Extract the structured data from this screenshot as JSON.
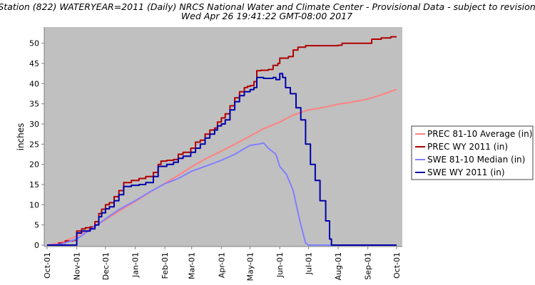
{
  "chart_data": {
    "type": "line",
    "title": "Station (822) WATERYEAR=2011 (Daily) NRCS National Water and Climate Center - Provisional Data - subject to revision",
    "subtitle": "Wed Apr 26 19:41:22 GMT-08:00 2017",
    "ylabel": "inches",
    "xlabel": "",
    "ylim": [
      0,
      54
    ],
    "yticks": [
      0,
      5,
      10,
      15,
      20,
      25,
      30,
      35,
      40,
      45,
      50
    ],
    "xlim": [
      "2010-10-01",
      "2011-10-04"
    ],
    "xticks": [
      {
        "label": "Oct-01",
        "date": "2010-10-01"
      },
      {
        "label": "Nov-01",
        "date": "2010-11-01"
      },
      {
        "label": "Dec-01",
        "date": "2010-12-01"
      },
      {
        "label": "Jan-01",
        "date": "2011-01-01"
      },
      {
        "label": "Feb-01",
        "date": "2011-02-01"
      },
      {
        "label": "Mar-01",
        "date": "2011-03-01"
      },
      {
        "label": "Apr-01",
        "date": "2011-04-01"
      },
      {
        "label": "May-01",
        "date": "2011-05-01"
      },
      {
        "label": "Jun-01",
        "date": "2011-06-01"
      },
      {
        "label": "Jul-01",
        "date": "2011-07-01"
      },
      {
        "label": "Aug-01",
        "date": "2011-08-01"
      },
      {
        "label": "Sep-01",
        "date": "2011-09-01"
      },
      {
        "label": "Oct-01",
        "date": "2011-10-01"
      }
    ],
    "grid": false,
    "plot_background": "#c0c0c0",
    "legend_position": "right",
    "series": [
      {
        "name": "PREC 81-10 Average (in)",
        "color": "#ff8080",
        "style": "smooth",
        "points": [
          [
            "2010-10-01",
            0.0
          ],
          [
            "2010-10-15",
            0.6
          ],
          [
            "2010-11-01",
            2.2
          ],
          [
            "2010-11-15",
            4.0
          ],
          [
            "2010-12-01",
            6.3
          ],
          [
            "2010-12-15",
            8.4
          ],
          [
            "2011-01-01",
            10.8
          ],
          [
            "2011-01-15",
            12.9
          ],
          [
            "2011-02-01",
            15.3
          ],
          [
            "2011-02-15",
            17.3
          ],
          [
            "2011-03-01",
            19.4
          ],
          [
            "2011-03-15",
            21.3
          ],
          [
            "2011-04-01",
            23.3
          ],
          [
            "2011-04-15",
            25.0
          ],
          [
            "2011-05-01",
            27.0
          ],
          [
            "2011-05-15",
            28.8
          ],
          [
            "2011-06-01",
            30.5
          ],
          [
            "2011-06-15",
            32.2
          ],
          [
            "2011-07-01",
            33.5
          ],
          [
            "2011-07-15",
            34.0
          ],
          [
            "2011-08-01",
            34.9
          ],
          [
            "2011-08-15",
            35.4
          ],
          [
            "2011-09-01",
            36.2
          ],
          [
            "2011-09-15",
            37.2
          ],
          [
            "2011-10-01",
            38.6
          ]
        ]
      },
      {
        "name": "PREC WY 2011  (in)",
        "color": "#b00000",
        "style": "step",
        "points": [
          [
            "2010-10-01",
            0.0
          ],
          [
            "2010-10-13",
            0.5
          ],
          [
            "2010-10-20",
            1.0
          ],
          [
            "2010-10-28",
            1.2
          ],
          [
            "2010-11-01",
            3.5
          ],
          [
            "2010-11-06",
            4.0
          ],
          [
            "2010-11-10",
            4.3
          ],
          [
            "2010-11-15",
            4.5
          ],
          [
            "2010-11-20",
            5.8
          ],
          [
            "2010-11-24",
            7.8
          ],
          [
            "2010-11-27",
            8.9
          ],
          [
            "2010-12-01",
            10.0
          ],
          [
            "2010-12-05",
            10.5
          ],
          [
            "2010-12-10",
            12.0
          ],
          [
            "2010-12-15",
            13.5
          ],
          [
            "2010-12-20",
            15.5
          ],
          [
            "2010-12-28",
            16.0
          ],
          [
            "2011-01-05",
            16.5
          ],
          [
            "2011-01-12",
            17.0
          ],
          [
            "2011-01-20",
            18.0
          ],
          [
            "2011-01-25",
            20.0
          ],
          [
            "2011-01-28",
            20.8
          ],
          [
            "2011-02-03",
            21.0
          ],
          [
            "2011-02-10",
            21.2
          ],
          [
            "2011-02-15",
            22.5
          ],
          [
            "2011-02-20",
            23.0
          ],
          [
            "2011-02-28",
            24.0
          ],
          [
            "2011-03-05",
            25.5
          ],
          [
            "2011-03-10",
            26.0
          ],
          [
            "2011-03-15",
            27.5
          ],
          [
            "2011-03-20",
            28.5
          ],
          [
            "2011-03-25",
            29.0
          ],
          [
            "2011-03-28",
            30.5
          ],
          [
            "2011-04-01",
            31.5
          ],
          [
            "2011-04-05",
            32.5
          ],
          [
            "2011-04-10",
            34.5
          ],
          [
            "2011-04-15",
            36.5
          ],
          [
            "2011-04-20",
            38.0
          ],
          [
            "2011-04-25",
            39.0
          ],
          [
            "2011-04-28",
            39.3
          ],
          [
            "2011-05-01",
            39.5
          ],
          [
            "2011-05-05",
            40.5
          ],
          [
            "2011-05-08",
            43.2
          ],
          [
            "2011-05-12",
            43.3
          ],
          [
            "2011-05-20",
            43.5
          ],
          [
            "2011-05-25",
            44.5
          ],
          [
            "2011-05-30",
            45.0
          ],
          [
            "2011-06-01",
            46.3
          ],
          [
            "2011-06-10",
            46.7
          ],
          [
            "2011-06-15",
            48.3
          ],
          [
            "2011-06-20",
            49.0
          ],
          [
            "2011-06-28",
            49.4
          ],
          [
            "2011-08-01",
            49.5
          ],
          [
            "2011-08-05",
            50.0
          ],
          [
            "2011-08-31",
            50.0
          ],
          [
            "2011-09-05",
            51.0
          ],
          [
            "2011-09-15",
            51.3
          ],
          [
            "2011-09-25",
            51.6
          ],
          [
            "2011-10-01",
            51.6
          ]
        ]
      },
      {
        "name": "SWE 81-10 Median (in)",
        "color": "#8080ff",
        "style": "smooth",
        "points": [
          [
            "2010-10-01",
            0.0
          ],
          [
            "2010-10-15",
            0.2
          ],
          [
            "2010-11-01",
            1.5
          ],
          [
            "2010-11-15",
            3.8
          ],
          [
            "2010-12-01",
            6.5
          ],
          [
            "2010-12-15",
            8.8
          ],
          [
            "2011-01-01",
            11.0
          ],
          [
            "2011-01-15",
            13.0
          ],
          [
            "2011-02-01",
            15.2
          ],
          [
            "2011-02-15",
            16.5
          ],
          [
            "2011-03-01",
            18.3
          ],
          [
            "2011-03-15",
            19.5
          ],
          [
            "2011-04-01",
            21.0
          ],
          [
            "2011-04-15",
            22.5
          ],
          [
            "2011-05-01",
            24.7
          ],
          [
            "2011-05-10",
            25.0
          ],
          [
            "2011-05-15",
            25.3
          ],
          [
            "2011-05-20",
            24.0
          ],
          [
            "2011-05-28",
            22.5
          ],
          [
            "2011-06-01",
            19.5
          ],
          [
            "2011-06-08",
            17.5
          ],
          [
            "2011-06-15",
            13.5
          ],
          [
            "2011-06-22",
            6.0
          ],
          [
            "2011-06-28",
            0.5
          ],
          [
            "2011-07-01",
            0.0
          ],
          [
            "2011-10-01",
            0.0
          ]
        ]
      },
      {
        "name": "SWE WY 2011  (in)",
        "color": "#0000aa",
        "style": "step",
        "points": [
          [
            "2010-10-01",
            0.0
          ],
          [
            "2010-10-25",
            0.0
          ],
          [
            "2010-11-01",
            3.0
          ],
          [
            "2010-11-06",
            3.5
          ],
          [
            "2010-11-15",
            4.0
          ],
          [
            "2010-11-20",
            5.0
          ],
          [
            "2010-11-24",
            7.0
          ],
          [
            "2010-11-27",
            8.0
          ],
          [
            "2010-12-01",
            9.0
          ],
          [
            "2010-12-05",
            9.5
          ],
          [
            "2010-12-10",
            11.0
          ],
          [
            "2010-12-15",
            12.5
          ],
          [
            "2010-12-20",
            14.5
          ],
          [
            "2010-12-28",
            14.8
          ],
          [
            "2011-01-05",
            15.0
          ],
          [
            "2011-01-12",
            15.5
          ],
          [
            "2011-01-20",
            17.0
          ],
          [
            "2011-01-25",
            19.5
          ],
          [
            "2011-02-03",
            20.0
          ],
          [
            "2011-02-10",
            20.5
          ],
          [
            "2011-02-15",
            21.5
          ],
          [
            "2011-02-20",
            22.0
          ],
          [
            "2011-02-28",
            23.0
          ],
          [
            "2011-03-05",
            24.0
          ],
          [
            "2011-03-10",
            25.0
          ],
          [
            "2011-03-15",
            26.5
          ],
          [
            "2011-03-20",
            27.5
          ],
          [
            "2011-03-25",
            28.5
          ],
          [
            "2011-03-28",
            29.5
          ],
          [
            "2011-04-01",
            30.0
          ],
          [
            "2011-04-05",
            31.0
          ],
          [
            "2011-04-10",
            33.5
          ],
          [
            "2011-04-15",
            35.5
          ],
          [
            "2011-04-20",
            37.0
          ],
          [
            "2011-04-25",
            38.0
          ],
          [
            "2011-05-01",
            38.5
          ],
          [
            "2011-05-05",
            39.0
          ],
          [
            "2011-05-08",
            41.5
          ],
          [
            "2011-05-15",
            41.3
          ],
          [
            "2011-05-25",
            41.5
          ],
          [
            "2011-05-28",
            41.0
          ],
          [
            "2011-06-01",
            42.5
          ],
          [
            "2011-06-04",
            41.5
          ],
          [
            "2011-06-07",
            39.0
          ],
          [
            "2011-06-12",
            37.5
          ],
          [
            "2011-06-18",
            34.0
          ],
          [
            "2011-06-23",
            31.0
          ],
          [
            "2011-06-28",
            25.0
          ],
          [
            "2011-07-03",
            20.0
          ],
          [
            "2011-07-08",
            16.0
          ],
          [
            "2011-07-13",
            11.0
          ],
          [
            "2011-07-19",
            6.0
          ],
          [
            "2011-07-23",
            1.5
          ],
          [
            "2011-07-25",
            0.0
          ],
          [
            "2011-10-01",
            0.0
          ]
        ]
      }
    ]
  }
}
